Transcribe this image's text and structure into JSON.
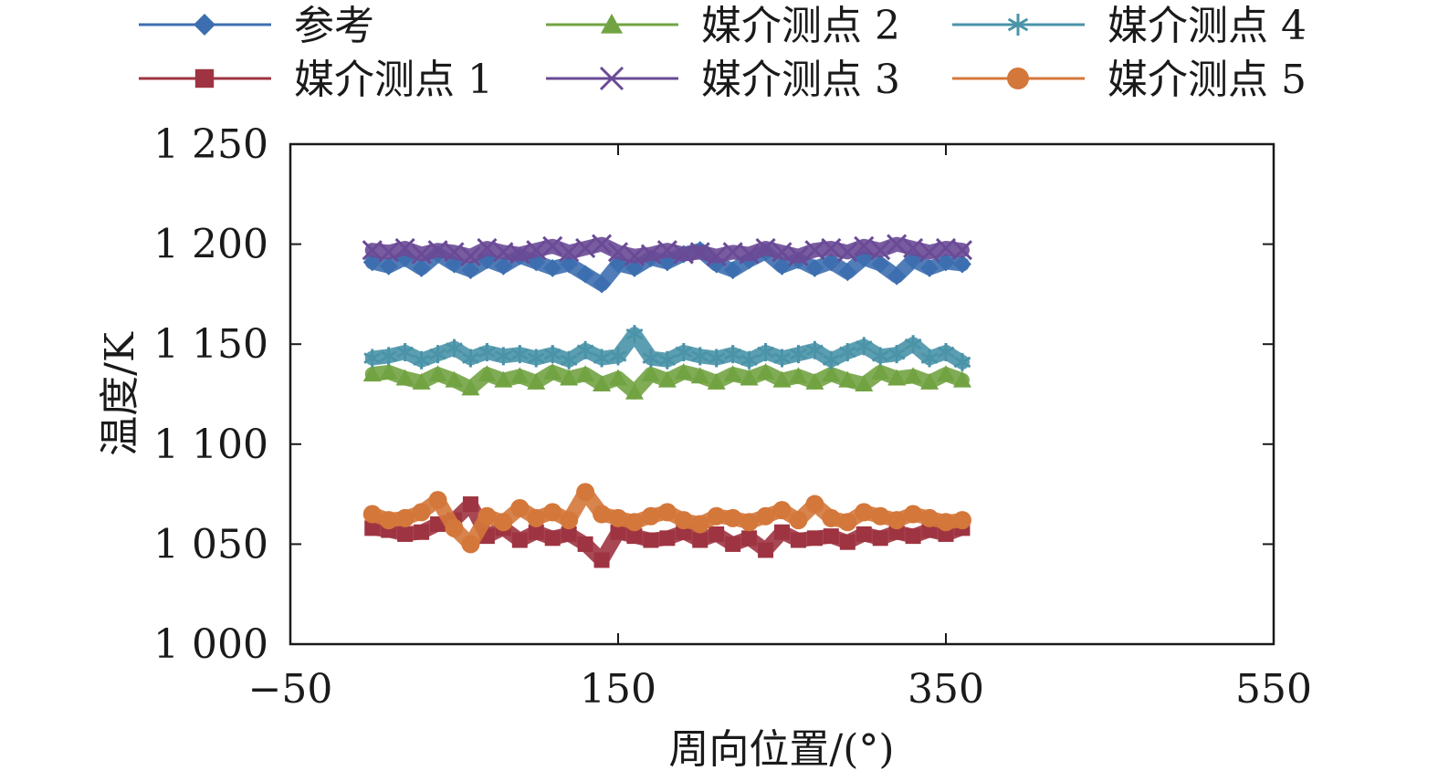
{
  "chart_data": {
    "type": "scatter",
    "xlabel": "周向位置/(°)",
    "ylabel": "温度/K",
    "xlim": [
      -50,
      550
    ],
    "ylim": [
      1000,
      1250
    ],
    "x_ticks": [
      -50,
      150,
      350,
      550
    ],
    "x_tick_labels": [
      "−50",
      "150",
      "350",
      "550"
    ],
    "y_ticks": [
      1000,
      1050,
      1100,
      1150,
      1200,
      1250
    ],
    "y_tick_labels": [
      "1 000",
      "1 050",
      "1 100",
      "1 150",
      "1 200",
      "1 250"
    ],
    "grid": false,
    "legend_position": "top",
    "x": [
      0,
      10,
      20,
      30,
      40,
      50,
      60,
      70,
      80,
      90,
      100,
      110,
      120,
      130,
      140,
      150,
      160,
      170,
      180,
      190,
      200,
      210,
      220,
      230,
      240,
      250,
      260,
      270,
      280,
      290,
      300,
      310,
      320,
      330,
      340,
      350,
      360
    ],
    "series": [
      {
        "name": "参考",
        "color": "#3d6fb0",
        "marker": "diamond",
        "values": [
          1191,
          1189,
          1193,
          1188,
          1195,
          1190,
          1187,
          1192,
          1189,
          1194,
          1191,
          1188,
          1190,
          1185,
          1180,
          1190,
          1188,
          1193,
          1191,
          1195,
          1197,
          1190,
          1187,
          1192,
          1196,
          1189,
          1192,
          1188,
          1191,
          1186,
          1193,
          1190,
          1184,
          1192,
          1188,
          1191,
          1190
        ]
      },
      {
        "name": "媒介测点 1",
        "color": "#9e3441",
        "marker": "square",
        "values": [
          1058,
          1057,
          1055,
          1056,
          1060,
          1062,
          1070,
          1054,
          1058,
          1052,
          1056,
          1053,
          1055,
          1050,
          1042,
          1056,
          1054,
          1052,
          1053,
          1056,
          1052,
          1055,
          1050,
          1053,
          1047,
          1056,
          1052,
          1053,
          1054,
          1051,
          1055,
          1053,
          1056,
          1054,
          1057,
          1055,
          1058
        ]
      },
      {
        "name": "媒介测点 2",
        "color": "#72a342",
        "marker": "triangle",
        "values": [
          1135,
          1136,
          1133,
          1131,
          1135,
          1132,
          1128,
          1135,
          1132,
          1134,
          1131,
          1136,
          1133,
          1135,
          1130,
          1133,
          1126,
          1135,
          1132,
          1136,
          1134,
          1131,
          1135,
          1133,
          1136,
          1132,
          1134,
          1131,
          1135,
          1132,
          1130,
          1136,
          1133,
          1134,
          1131,
          1135,
          1132
        ]
      },
      {
        "name": "媒介测点 3",
        "color": "#6a4a96",
        "marker": "cross",
        "values": [
          1197,
          1196,
          1198,
          1195,
          1197,
          1196,
          1194,
          1198,
          1196,
          1195,
          1197,
          1199,
          1196,
          1198,
          1200,
          1196,
          1194,
          1195,
          1197,
          1195,
          1196,
          1194,
          1196,
          1195,
          1198,
          1196,
          1194,
          1197,
          1198,
          1196,
          1199,
          1197,
          1200,
          1198,
          1196,
          1198,
          1197
        ]
      },
      {
        "name": "媒介测点 4",
        "color": "#4a93a8",
        "marker": "asterisk",
        "values": [
          1143,
          1144,
          1146,
          1142,
          1145,
          1148,
          1143,
          1146,
          1144,
          1145,
          1143,
          1145,
          1142,
          1147,
          1143,
          1144,
          1155,
          1143,
          1142,
          1146,
          1144,
          1143,
          1145,
          1142,
          1146,
          1143,
          1145,
          1147,
          1142,
          1146,
          1149,
          1144,
          1145,
          1150,
          1143,
          1146,
          1141
        ]
      },
      {
        "name": "媒介测点 5",
        "color": "#d4773a",
        "marker": "circle",
        "values": [
          1065,
          1062,
          1063,
          1066,
          1072,
          1058,
          1050,
          1064,
          1061,
          1068,
          1063,
          1066,
          1062,
          1076,
          1065,
          1063,
          1061,
          1064,
          1066,
          1062,
          1060,
          1064,
          1063,
          1061,
          1064,
          1067,
          1062,
          1070,
          1063,
          1061,
          1066,
          1064,
          1062,
          1065,
          1063,
          1061,
          1062
        ]
      }
    ]
  }
}
